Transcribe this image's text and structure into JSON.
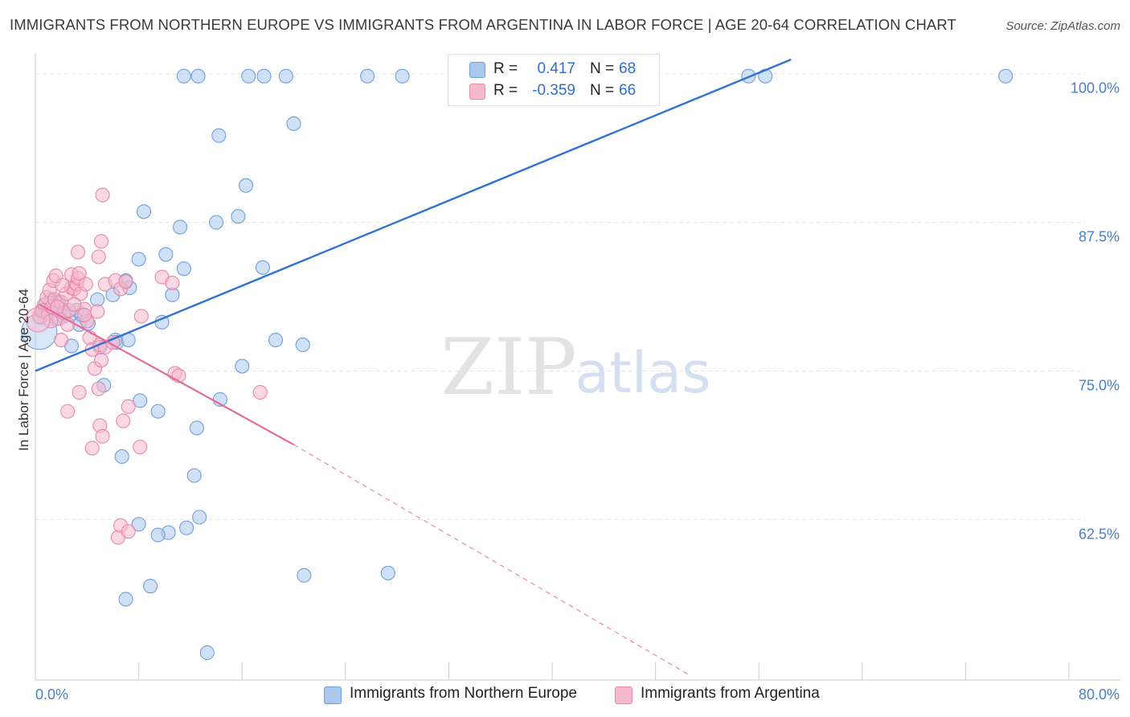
{
  "header": {
    "title": "IMMIGRANTS FROM NORTHERN EUROPE VS IMMIGRANTS FROM ARGENTINA IN LABOR FORCE | AGE 20-64 CORRELATION CHART",
    "source": "Source: ZipAtlas.com"
  },
  "watermark": {
    "zip": "ZIP",
    "atlas": "atlas"
  },
  "legend_top": {
    "rows": [
      {
        "r_label": "R =",
        "r_value": "0.417",
        "n_label": "N =",
        "n_value": "68"
      },
      {
        "r_label": "R =",
        "r_value": "-0.359",
        "n_label": "N =",
        "n_value": "66"
      }
    ]
  },
  "colors": {
    "blue_fill": "#aac8ee",
    "blue_stroke": "#6f9edb",
    "blue_line": "#2f72d0",
    "pink_fill": "#f6b8cc",
    "pink_stroke": "#ea86a8",
    "pink_line": "#e36b98",
    "tick_text": "#4a7fd0",
    "grid": "#e6e6e6"
  },
  "chart_data": {
    "type": "scatter",
    "title": "IMMIGRANTS FROM NORTHERN EUROPE VS IMMIGRANTS FROM ARGENTINA IN LABOR FORCE | AGE 20-64 CORRELATION CHART",
    "xlabel": "",
    "ylabel": "In Labor Force | Age 20-64",
    "xlim": [
      0,
      80
    ],
    "ylim": [
      49,
      101.2
    ],
    "x_tick_labels": {
      "left": "0.0%",
      "right": "80.0%"
    },
    "y_ticks": [
      {
        "value": 100,
        "label": "100.0%"
      },
      {
        "value": 87.5,
        "label": "87.5%"
      },
      {
        "value": 75,
        "label": "75.0%"
      },
      {
        "value": 62.5,
        "label": "62.5%"
      }
    ],
    "legend_position": "bottom",
    "series": [
      {
        "name": "Immigrants from Northern Europe",
        "color_key": "blue",
        "R": 0.417,
        "N": 68,
        "trend": {
          "x0": 0,
          "y0": 75.0,
          "x1": 58.5,
          "y1": 101.2
        },
        "points": [
          [
            0.4,
            79.5
          ],
          [
            0.5,
            80.0
          ],
          [
            0.8,
            80.6
          ],
          [
            1.0,
            80.2
          ],
          [
            1.2,
            81.0
          ],
          [
            1.4,
            80.3
          ],
          [
            1.6,
            79.4
          ],
          [
            1.8,
            80.8
          ],
          [
            2.0,
            80.2
          ],
          [
            2.2,
            79.6
          ],
          [
            2.8,
            79.8
          ],
          [
            3.2,
            80.1
          ],
          [
            3.4,
            78.9
          ],
          [
            3.6,
            79.7
          ],
          [
            4.1,
            79.0
          ],
          [
            2.8,
            77.1
          ],
          [
            5.0,
            77.0
          ],
          [
            6.2,
            77.6
          ],
          [
            6.3,
            77.4
          ],
          [
            7.2,
            77.6
          ],
          [
            5.3,
            73.8
          ],
          [
            4.8,
            81.0
          ],
          [
            6.0,
            81.4
          ],
          [
            7.3,
            82.0
          ],
          [
            7.0,
            82.6
          ],
          [
            8.0,
            84.4
          ],
          [
            8.4,
            88.4
          ],
          [
            8.1,
            72.5
          ],
          [
            9.5,
            71.6
          ],
          [
            10.1,
            84.8
          ],
          [
            10.6,
            81.4
          ],
          [
            9.8,
            79.1
          ],
          [
            11.2,
            87.1
          ],
          [
            11.5,
            83.6
          ],
          [
            12.5,
            70.2
          ],
          [
            14.0,
            87.5
          ],
          [
            14.3,
            72.6
          ],
          [
            12.3,
            66.2
          ],
          [
            12.7,
            62.7
          ],
          [
            11.7,
            61.8
          ],
          [
            10.3,
            61.4
          ],
          [
            9.5,
            61.2
          ],
          [
            8.0,
            62.1
          ],
          [
            6.7,
            67.8
          ],
          [
            7.0,
            55.8
          ],
          [
            8.9,
            56.9
          ],
          [
            13.3,
            51.3
          ],
          [
            14.2,
            94.8
          ],
          [
            16.3,
            90.6
          ],
          [
            15.7,
            88.0
          ],
          [
            16.0,
            75.4
          ],
          [
            17.6,
            83.7
          ],
          [
            18.6,
            77.6
          ],
          [
            20.7,
            77.2
          ],
          [
            20.0,
            95.8
          ],
          [
            20.8,
            57.8
          ],
          [
            27.3,
            58.0
          ],
          [
            11.5,
            99.8
          ],
          [
            12.6,
            99.8
          ],
          [
            16.5,
            99.8
          ],
          [
            17.7,
            99.8
          ],
          [
            19.4,
            99.8
          ],
          [
            25.7,
            99.8
          ],
          [
            28.4,
            99.8
          ],
          [
            33.8,
            99.8
          ],
          [
            55.2,
            99.8
          ],
          [
            56.5,
            99.8
          ],
          [
            75.1,
            99.8
          ]
        ]
      },
      {
        "name": "Immigrants from Argentina",
        "color_key": "pink",
        "R": -0.359,
        "N": 66,
        "trend": {
          "x0": 0.3,
          "y0": 80.6,
          "x1": 20.0,
          "y1": 68.8,
          "dash_x1": 50.5,
          "dash_y1": 49.5
        },
        "points": [
          [
            0.3,
            79.6
          ],
          [
            0.5,
            80.1
          ],
          [
            0.7,
            80.6
          ],
          [
            0.9,
            81.2
          ],
          [
            1.1,
            81.8
          ],
          [
            1.0,
            79.8
          ],
          [
            1.3,
            80.4
          ],
          [
            1.5,
            81.0
          ],
          [
            1.8,
            79.4
          ],
          [
            2.0,
            80.8
          ],
          [
            2.2,
            79.9
          ],
          [
            2.4,
            81.5
          ],
          [
            2.6,
            80.1
          ],
          [
            2.8,
            82.0
          ],
          [
            3.0,
            81.9
          ],
          [
            3.2,
            82.3
          ],
          [
            1.4,
            82.6
          ],
          [
            1.6,
            83.0
          ],
          [
            2.8,
            83.1
          ],
          [
            3.3,
            82.8
          ],
          [
            2.1,
            82.2
          ],
          [
            3.5,
            81.5
          ],
          [
            3.8,
            80.2
          ],
          [
            4.0,
            79.2
          ],
          [
            4.2,
            77.8
          ],
          [
            4.4,
            76.8
          ],
          [
            4.6,
            75.2
          ],
          [
            4.9,
            73.5
          ],
          [
            3.4,
            73.2
          ],
          [
            2.5,
            71.6
          ],
          [
            5.0,
            77.2
          ],
          [
            5.4,
            77.0
          ],
          [
            6.0,
            77.4
          ],
          [
            5.1,
            75.9
          ],
          [
            5.0,
            70.4
          ],
          [
            5.2,
            69.5
          ],
          [
            4.4,
            68.5
          ],
          [
            6.8,
            70.8
          ],
          [
            7.2,
            72.0
          ],
          [
            8.1,
            68.6
          ],
          [
            8.2,
            79.6
          ],
          [
            9.8,
            82.9
          ],
          [
            10.6,
            82.4
          ],
          [
            10.8,
            74.8
          ],
          [
            11.1,
            74.6
          ],
          [
            17.4,
            73.2
          ],
          [
            4.9,
            84.6
          ],
          [
            5.1,
            85.9
          ],
          [
            5.2,
            89.8
          ],
          [
            3.3,
            85.0
          ],
          [
            5.4,
            82.3
          ],
          [
            6.2,
            82.6
          ],
          [
            6.6,
            81.9
          ],
          [
            7.0,
            82.5
          ],
          [
            4.8,
            80.0
          ],
          [
            3.4,
            83.2
          ],
          [
            3.9,
            82.3
          ],
          [
            1.2,
            79.2
          ],
          [
            2.0,
            77.6
          ],
          [
            1.7,
            80.4
          ],
          [
            6.4,
            61.0
          ],
          [
            6.6,
            62.0
          ],
          [
            7.2,
            61.5
          ],
          [
            3.8,
            79.7
          ],
          [
            2.5,
            78.9
          ],
          [
            3.0,
            80.6
          ]
        ]
      }
    ]
  }
}
